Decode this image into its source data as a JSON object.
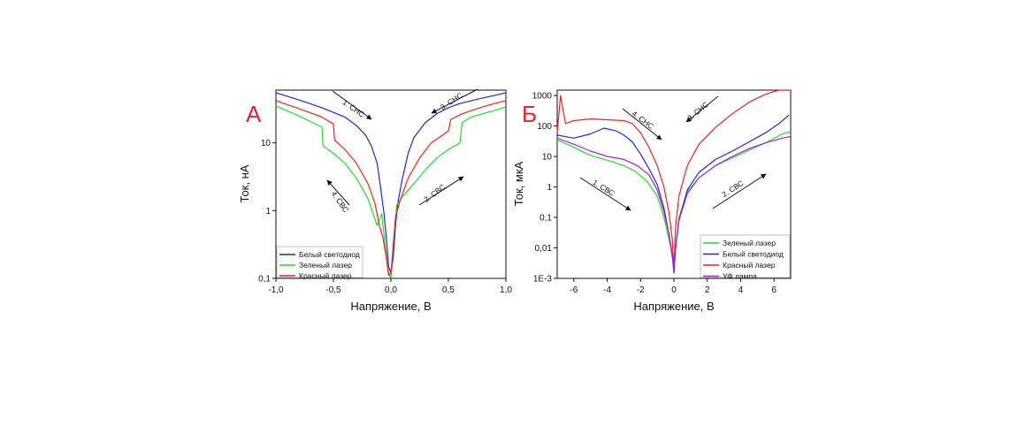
{
  "chart_data": [
    {
      "type": "line",
      "panel_label": "А",
      "xlabel": "Напряжение, В",
      "ylabel": "Ток, нА",
      "xlim": [
        -1.0,
        1.0
      ],
      "ylim": [
        0.1,
        60
      ],
      "yscale": "log",
      "xticks": [
        -1.0,
        -0.5,
        0.0,
        0.5,
        1.0
      ],
      "xtick_labels": [
        "-1,0",
        "-0,5",
        "0,0",
        "0,5",
        "1,0"
      ],
      "yticks": [
        0.1,
        1,
        10
      ],
      "ytick_labels": [
        "0,1",
        "1",
        "10"
      ],
      "legend_position": "bottom-left",
      "annotations": [
        {
          "text": "1. СНС",
          "x": -0.35,
          "y": 28,
          "arrow": "down-right"
        },
        {
          "text": "3. СНС",
          "x": 0.58,
          "y": 28,
          "arrow": "down-left"
        },
        {
          "text": "4. СВС",
          "x": -0.42,
          "y": 4,
          "arrow": "up-left"
        },
        {
          "text": "2. СВС",
          "x": 0.42,
          "y": 3,
          "arrow": "up-right"
        }
      ],
      "series": [
        {
          "name": "Белый светодиод",
          "color": "#2222ee",
          "x": [
            -1.0,
            -0.8,
            -0.6,
            -0.4,
            -0.3,
            -0.22,
            -0.17,
            -0.12,
            -0.09,
            -0.06,
            -0.04,
            -0.02,
            0.0,
            0.02,
            0.04,
            0.06,
            0.1,
            0.15,
            0.2,
            0.3,
            0.4,
            0.5,
            0.6,
            0.7,
            0.8,
            0.9,
            1.0
          ],
          "y": [
            55,
            43,
            33,
            24,
            18,
            13,
            9,
            5,
            2.2,
            0.9,
            0.4,
            0.15,
            0.12,
            0.2,
            0.6,
            1.3,
            3,
            7,
            12,
            20,
            27,
            33,
            38,
            42,
            46,
            50,
            55
          ]
        },
        {
          "name": "Зеленый лазер",
          "color": "#22dd22",
          "x": [
            -1.0,
            -0.8,
            -0.6,
            -0.59,
            -0.5,
            -0.4,
            -0.3,
            -0.2,
            -0.12,
            -0.08,
            -0.05,
            -0.02,
            0.0,
            0.02,
            0.05,
            0.1,
            0.2,
            0.3,
            0.4,
            0.5,
            0.6,
            0.62,
            0.7,
            0.8,
            0.9,
            1.0
          ],
          "y": [
            35,
            25,
            17,
            9,
            7,
            5,
            3,
            1.5,
            0.6,
            0.9,
            0.3,
            0.12,
            0.1,
            0.3,
            1.2,
            1.6,
            2.5,
            4,
            6,
            8,
            10,
            20,
            24,
            27,
            30,
            34
          ]
        },
        {
          "name": "Красный лазер",
          "color": "#ee2222",
          "x": [
            -1.0,
            -0.8,
            -0.6,
            -0.5,
            -0.49,
            -0.4,
            -0.3,
            -0.2,
            -0.14,
            -0.1,
            -0.07,
            -0.04,
            -0.02,
            0.0,
            0.02,
            0.04,
            0.08,
            0.15,
            0.25,
            0.35,
            0.45,
            0.5,
            0.52,
            0.6,
            0.7,
            0.8,
            0.9,
            1.0
          ],
          "y": [
            42,
            32,
            24,
            19,
            11,
            8,
            5,
            2.5,
            1.3,
            0.6,
            0.4,
            0.2,
            0.11,
            0.12,
            0.3,
            0.8,
            1.4,
            3,
            6,
            10,
            13,
            15,
            22,
            26,
            30,
            34,
            38,
            42
          ]
        }
      ]
    },
    {
      "type": "line",
      "panel_label": "Б",
      "xlabel": "Напряжение, В",
      "ylabel": "Ток, мкА",
      "xlim": [
        -7,
        7
      ],
      "ylim": [
        0.001,
        1500
      ],
      "yscale": "log",
      "xticks": [
        -6,
        -4,
        -2,
        0,
        2,
        4,
        6
      ],
      "xtick_labels": [
        "-6",
        "-4",
        "-2",
        "0",
        "2",
        "4",
        "6"
      ],
      "yticks": [
        0.001,
        0.01,
        0.1,
        1,
        10,
        100,
        1000
      ],
      "ytick_labels": [
        "1E-3",
        "0,01",
        "0,1",
        "1",
        "10",
        "100",
        "1000"
      ],
      "legend_position": "bottom-right",
      "annotations": [
        {
          "text": "4. СНС",
          "x": -2.2,
          "y": 120,
          "arrow": "down-right"
        },
        {
          "text": "3. СНС",
          "x": 2.3,
          "y": 200,
          "arrow": "down-left"
        },
        {
          "text": "1. СВС",
          "x": -4.2,
          "y": 1.2,
          "arrow": "down-right"
        },
        {
          "text": "2. СВС",
          "x": 3.6,
          "y": 1.5,
          "arrow": "up-right"
        }
      ],
      "series": [
        {
          "name": "Зеленый лазер",
          "color": "#22dd22",
          "x": [
            -7,
            -6,
            -5.2,
            -4.5,
            -3.8,
            -3,
            -2.3,
            -1.6,
            -1,
            -0.6,
            -0.3,
            -0.1,
            0,
            0.1,
            0.3,
            0.8,
            1.5,
            2.5,
            3.5,
            4.5,
            5.5,
            6.5,
            7
          ],
          "y": [
            35,
            20,
            12,
            9,
            7,
            5,
            3.2,
            1.5,
            0.5,
            0.1,
            0.02,
            0.006,
            0.004,
            0.01,
            0.1,
            0.7,
            2,
            5,
            9,
            16,
            28,
            55,
            65
          ]
        },
        {
          "name": "Белый светодиод",
          "color": "#2222ee",
          "x": [
            -7,
            -6,
            -5,
            -4.2,
            -3.5,
            -3,
            -2.5,
            -2,
            -1.5,
            -1,
            -0.6,
            -0.3,
            -0.1,
            0,
            0.1,
            0.3,
            0.8,
            1.5,
            2.5,
            3.5,
            4.5,
            5.5,
            6.3,
            6.9
          ],
          "y": [
            50,
            40,
            55,
            85,
            70,
            50,
            30,
            12,
            4,
            1.2,
            0.2,
            0.03,
            0.006,
            0.0015,
            0.01,
            0.08,
            0.8,
            3,
            8,
            15,
            30,
            60,
            120,
            230
          ]
        },
        {
          "name": "Красный лазер",
          "color": "#ee2222",
          "x": [
            -7,
            -6.8,
            -6.5,
            -6,
            -5,
            -4,
            -3,
            -2.5,
            -2,
            -1.5,
            -1,
            -0.6,
            -0.3,
            -0.1,
            0,
            0.1,
            0.3,
            0.8,
            1.5,
            2.5,
            3.5,
            4.5,
            5.5,
            6.3,
            7
          ],
          "y": [
            60,
            1000,
            120,
            150,
            170,
            160,
            150,
            120,
            60,
            20,
            5,
            1,
            0.15,
            0.02,
            0.002,
            0.05,
            0.5,
            5,
            25,
            90,
            250,
            600,
            1100,
            1500,
            1500
          ]
        },
        {
          "name": "УФ лампа",
          "color": "#aa22cc",
          "x": [
            -7,
            -6,
            -5,
            -4,
            -3,
            -2.2,
            -1.5,
            -1,
            -0.6,
            -0.3,
            -0.1,
            0,
            0.1,
            0.3,
            0.8,
            1.5,
            2.5,
            3.5,
            4.5,
            5.5,
            6.5,
            7
          ],
          "y": [
            40,
            25,
            15,
            10,
            8,
            5,
            2.5,
            0.8,
            0.15,
            0.03,
            0.005,
            0.003,
            0.01,
            0.08,
            0.6,
            2,
            5,
            10,
            18,
            28,
            40,
            45
          ]
        }
      ]
    }
  ]
}
